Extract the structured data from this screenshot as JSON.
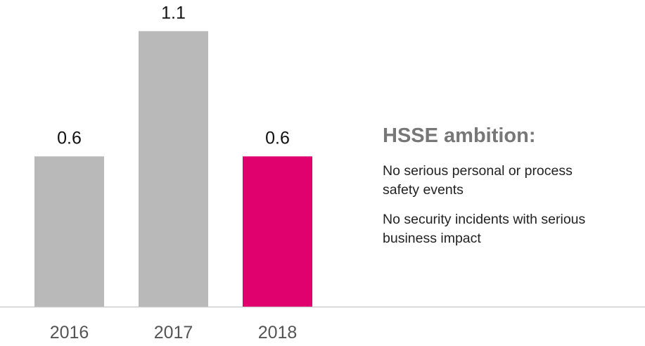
{
  "chart_data": {
    "type": "bar",
    "categories": [
      "2016",
      "2017",
      "2018"
    ],
    "values": [
      0.6,
      1.1,
      0.6
    ],
    "value_labels": [
      "0.6",
      "1.1",
      "0.6"
    ],
    "ylim": [
      0,
      1.32
    ],
    "grid": false,
    "colors": {
      "default_bar": "#b9b9b9",
      "highlight_bar": "#e0006e",
      "axis_line": "#cccccc"
    },
    "highlight_index": 2
  },
  "side_panel": {
    "title": "HSSE ambition:",
    "items": [
      "No serious personal or process safety events",
      "No security incidents with serious business impact"
    ]
  }
}
